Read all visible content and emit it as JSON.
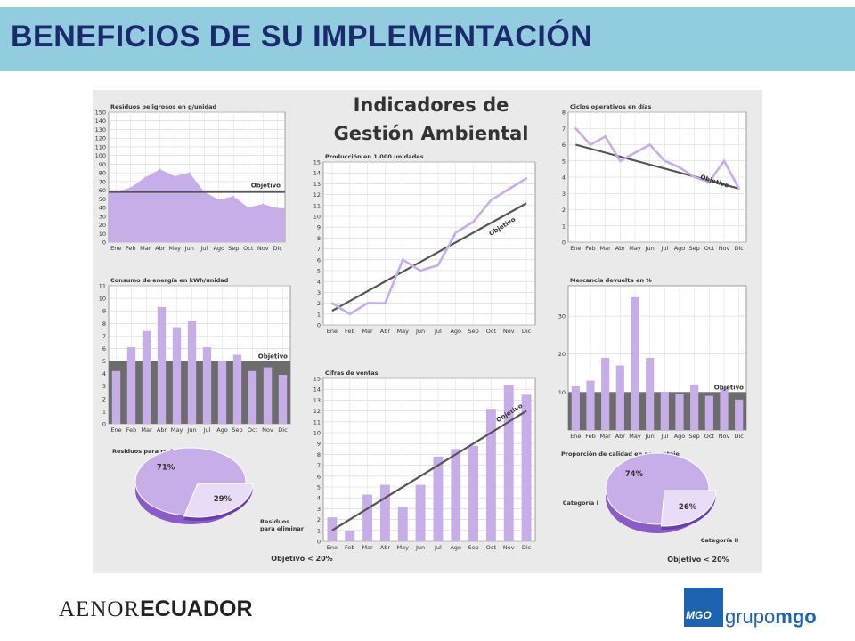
{
  "slide": {
    "title": "BENEFICIOS DE SU IMPLEMENTACIÓN"
  },
  "poster": {
    "title_line1": "Indicadores de",
    "title_line2": "Gestión Ambiental"
  },
  "colors": {
    "lilac": "#c8aee8",
    "purple": "#8a5cc8",
    "objective": "#555555",
    "header": "#92cddf",
    "title": "#1a2a6c"
  },
  "months": [
    "Ene",
    "Feb",
    "Mar",
    "Abr",
    "May",
    "Jun",
    "Jul",
    "Ago",
    "Sep",
    "Oct",
    "Nov",
    "Dic"
  ],
  "chart_data": [
    {
      "type": "area",
      "title": "Residuos peligrosos en g/unidad",
      "y_ticks": [
        0,
        10,
        20,
        30,
        40,
        50,
        60,
        70,
        80,
        90,
        100,
        110,
        120,
        130,
        140,
        150
      ],
      "ylim": [
        0,
        150
      ],
      "values": [
        58,
        63,
        75,
        84,
        76,
        80,
        58,
        49,
        53,
        40,
        44,
        39
      ],
      "objective": 58,
      "objective_label": "Objetivo",
      "grid": true
    },
    {
      "type": "line",
      "title": "Producción en 1.000 unidades",
      "y_ticks": [
        0,
        1,
        2,
        3,
        4,
        5,
        6,
        7,
        8,
        9,
        10,
        11,
        12,
        13,
        14,
        15
      ],
      "ylim": [
        0,
        15
      ],
      "values": [
        2,
        1,
        2,
        2,
        6,
        5,
        5.5,
        8.5,
        9.5,
        11.5,
        12.5,
        13.5
      ],
      "objective_line": [
        1.3,
        11.2
      ],
      "objective_label": "Objetivo",
      "grid": true
    },
    {
      "type": "line",
      "title": "Ciclos operativos en días",
      "y_ticks": [
        0,
        1,
        2,
        3,
        4,
        5,
        6,
        7,
        8
      ],
      "ylim": [
        0,
        8
      ],
      "values": [
        7,
        6,
        6.5,
        5,
        5.5,
        6,
        5,
        4.6,
        4,
        3.7,
        5,
        3.3
      ],
      "objective_line": [
        6,
        3.3
      ],
      "objective_label": "Objetivo",
      "grid": true
    },
    {
      "type": "bar",
      "title": "Consumo de energía en kWh/unidad",
      "y_ticks": [
        0,
        1,
        2,
        3,
        4,
        5,
        6,
        7,
        8,
        9,
        10,
        11
      ],
      "ylim": [
        0,
        11
      ],
      "values": [
        4.2,
        6.1,
        7.4,
        9.3,
        7.7,
        8.2,
        6.1,
        5,
        5.5,
        4.2,
        4.5,
        3.9
      ],
      "objective": 5,
      "objective_label": "Objetivo",
      "grid": true
    },
    {
      "type": "bar",
      "title": "Cifras de ventas",
      "y_ticks": [
        0,
        1,
        2,
        3,
        4,
        5,
        6,
        7,
        8,
        9,
        10,
        11,
        12,
        13,
        14,
        15
      ],
      "ylim": [
        0,
        15
      ],
      "values": [
        2.2,
        1,
        4.3,
        5.2,
        3.2,
        5.2,
        7.8,
        8.5,
        8.8,
        12.2,
        14.4,
        13.5
      ],
      "objective_line": [
        1,
        12
      ],
      "objective_label": "Objetivo",
      "grid": true
    },
    {
      "type": "bar",
      "title": "Mercancía devuelta en %",
      "y_ticks": [
        10,
        20,
        30
      ],
      "ylim": [
        0,
        38
      ],
      "values": [
        11.5,
        13,
        19,
        17,
        35,
        19,
        10,
        9.5,
        12,
        9,
        11,
        8
      ],
      "objective": 10,
      "objective_label": "Objetivo",
      "grid": true
    },
    {
      "type": "pie",
      "title": "Residuos para reciclar",
      "slices": [
        {
          "label": "71%",
          "value": 71
        },
        {
          "label": "29%",
          "value": 29
        }
      ],
      "slice_label": "Residuos para eliminar",
      "objective_label": "Objetivo < 20%"
    },
    {
      "type": "pie",
      "title": "Proporción de calidad en porcentaje",
      "slices": [
        {
          "label": "74%",
          "value": 74,
          "name": "Categoría I"
        },
        {
          "label": "26%",
          "value": 26,
          "name": "Categoría II"
        }
      ],
      "objective_label": "Objetivo < 20%"
    }
  ],
  "footer": {
    "left_part1": "AENOR",
    "left_part2": "ECUADOR",
    "right_badge": "MGO",
    "right_word1": "grupo",
    "right_word2": "mgo"
  }
}
